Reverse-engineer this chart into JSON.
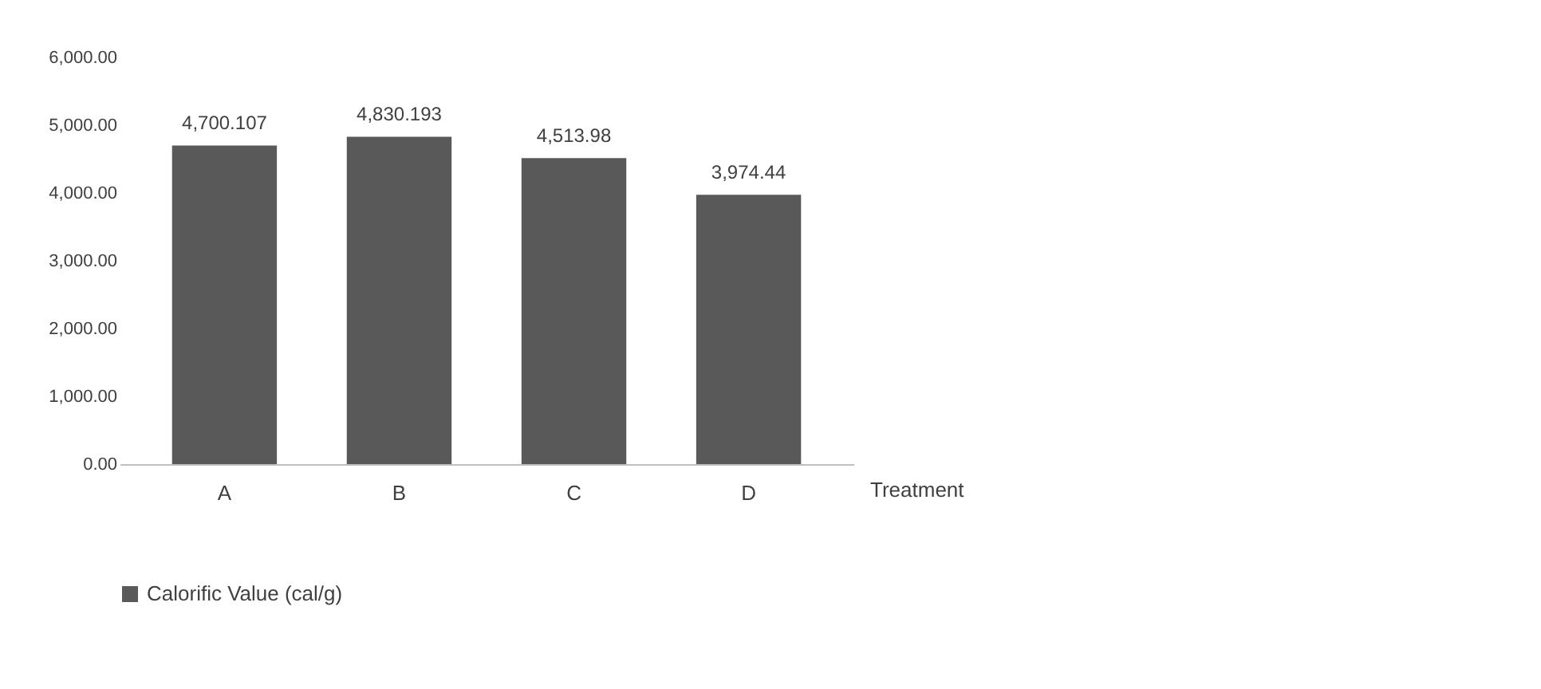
{
  "chart_data": {
    "type": "bar",
    "xlabel": "Treatment",
    "categories": [
      "A",
      "B",
      "C",
      "D"
    ],
    "series": [
      {
        "name": "Calorific Value (cal/g)",
        "color": "#595959",
        "values": [
          4700.107,
          4830.193,
          4513.98,
          3974.44
        ],
        "value_labels": [
          "4,700.107",
          "4,830.193",
          "4,513.98",
          "3,974.44"
        ]
      }
    ],
    "ylim": [
      0,
      6000
    ],
    "yticks": [
      {
        "value": 0,
        "label": "0.00"
      },
      {
        "value": 1000,
        "label": "1,000.00"
      },
      {
        "value": 2000,
        "label": "2,000.00"
      },
      {
        "value": 3000,
        "label": "3,000.00"
      },
      {
        "value": 4000,
        "label": "4,000.00"
      },
      {
        "value": 5000,
        "label": "5,000.00"
      },
      {
        "value": 6000,
        "label": "6,000.00"
      }
    ],
    "grid": false,
    "legend": "bottom"
  }
}
